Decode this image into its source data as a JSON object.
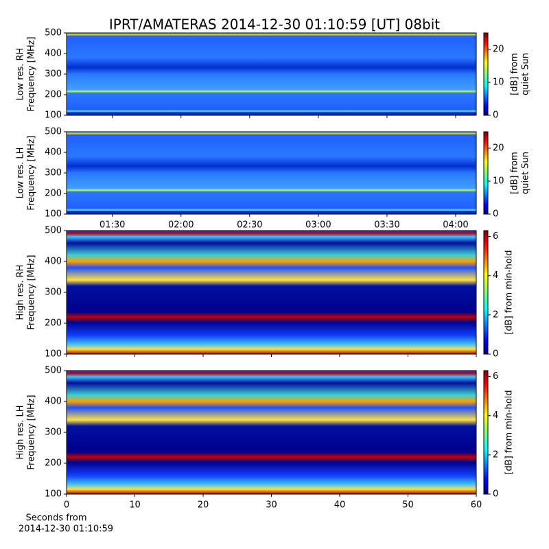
{
  "title": "IPRT/AMATERAS 2014-12-30 01:10:59 [UT]   08bit",
  "chart_data": [
    {
      "type": "heatmap",
      "ylabel": [
        "Low res. RH",
        "Frequency [MHz]"
      ],
      "ylim": [
        100,
        500
      ],
      "yticks": [
        100,
        200,
        300,
        400,
        500
      ],
      "colorbar": {
        "label": [
          "[dB] from",
          "quiet Sun"
        ],
        "lim": [
          0,
          25
        ],
        "ticks": [
          0,
          10,
          20
        ]
      }
    },
    {
      "type": "heatmap",
      "ylabel": [
        "Low res. LH",
        "Frequency [MHz]"
      ],
      "ylim": [
        100,
        500
      ],
      "yticks": [
        100,
        200,
        300,
        400,
        500
      ],
      "xlim": [
        "01:10",
        "04:09"
      ],
      "xticks": [
        "01:30",
        "02:00",
        "02:30",
        "03:00",
        "03:30",
        "04:00"
      ],
      "colorbar": {
        "label": [
          "[dB] from",
          "quiet Sun"
        ],
        "lim": [
          0,
          25
        ],
        "ticks": [
          0,
          10,
          20
        ]
      }
    },
    {
      "type": "heatmap",
      "ylabel": [
        "High res. RH",
        "Frequency [MHz]"
      ],
      "ylim": [
        100,
        500
      ],
      "yticks": [
        100,
        200,
        300,
        400,
        500
      ],
      "colorbar": {
        "label": [
          "[dB] from min-hold"
        ],
        "lim": [
          0,
          6.3
        ],
        "ticks": [
          0,
          2,
          4,
          6
        ]
      }
    },
    {
      "type": "heatmap",
      "ylabel": [
        "High res. LH",
        "Frequency [MHz]"
      ],
      "ylim": [
        100,
        500
      ],
      "yticks": [
        100,
        200,
        300,
        400,
        500
      ],
      "xlim": [
        0,
        60
      ],
      "xticks": [
        0,
        10,
        20,
        30,
        40,
        50,
        60
      ],
      "xlabel": [
        "Seconds from",
        "2014-12-30 01:10:59"
      ],
      "colorbar": {
        "label": [
          "[dB] from min-hold"
        ],
        "lim": [
          0,
          6.3
        ],
        "ticks": [
          0,
          2,
          4,
          6
        ]
      }
    }
  ]
}
